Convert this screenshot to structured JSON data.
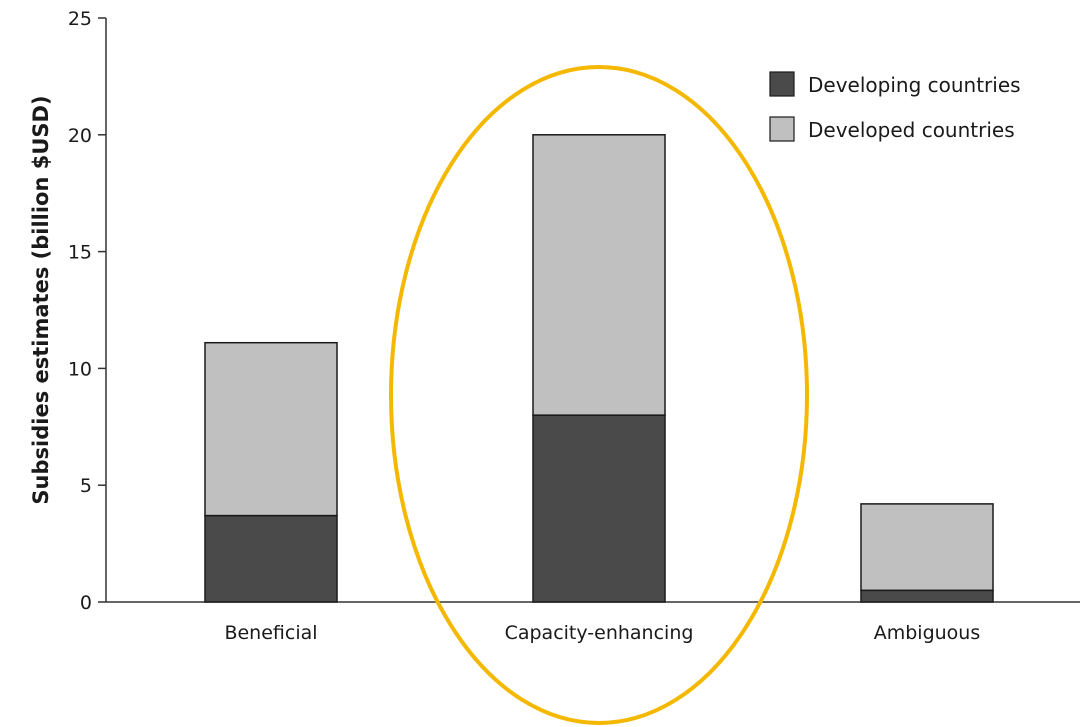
{
  "chart_data": {
    "type": "bar",
    "stacked": true,
    "categories": [
      "Beneficial",
      "Capacity-enhancing",
      "Ambiguous"
    ],
    "series": [
      {
        "name": "Developing countries",
        "values": [
          3.7,
          8.0,
          0.5
        ],
        "color": "#4a4a4a"
      },
      {
        "name": "Developed countries",
        "values": [
          7.4,
          12.0,
          3.7
        ],
        "color": "#c0c0c0"
      }
    ],
    "ylabel": "Subsidies estimates (billion $USD)",
    "xlabel": "",
    "ylim": [
      0,
      25
    ],
    "yticks": [
      0,
      5,
      10,
      15,
      20,
      25
    ],
    "grid": false,
    "legend": "top-right",
    "highlight": {
      "category": "Capacity-enhancing",
      "shape": "ellipse",
      "color": "#f5b800"
    }
  }
}
